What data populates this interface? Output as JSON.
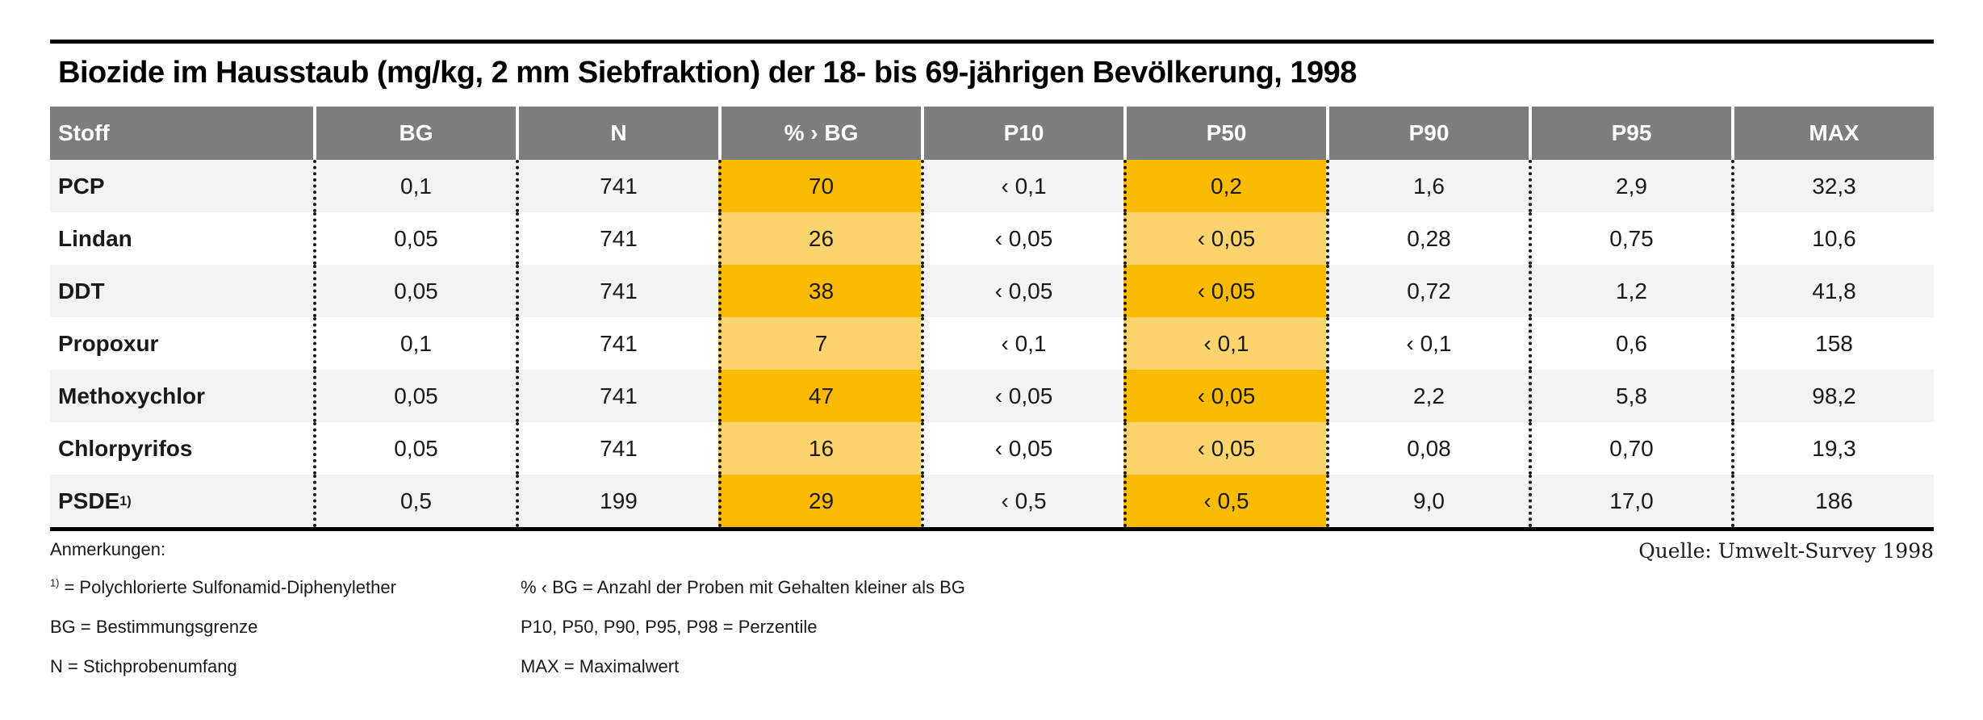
{
  "page": {
    "title": "Biozide im Hausstaub (mg/kg, 2 mm Siebfraktion) der 18- bis 69-jährigen Bevölkerung, 1998",
    "source": "Quelle: Umwelt-Survey 1998"
  },
  "colors": {
    "header_gray": "#7d7d7d",
    "row_alternate": "#f3f3f3",
    "highlight_dark_orange": "#fabb00",
    "highlight_light_orange": "#fcd46e",
    "rule_black": "#000000",
    "text": "#1a1a1a"
  },
  "table": {
    "headers": {
      "stoff": "Stoff",
      "bg": "BG",
      "n": "N",
      "pct": "% › BG",
      "p10": "P10",
      "p50": "P50",
      "p90": "P90",
      "p95": "P95",
      "max": "MAX"
    },
    "highlighted_columns": [
      "% › BG",
      "P50"
    ],
    "rows": [
      {
        "label": "PCP",
        "marker": "",
        "bg": "0,1",
        "n": "741",
        "pct": "70",
        "p10": "‹ 0,1",
        "p50": "0,2",
        "p90": "1,6",
        "p95": "2,9",
        "max": "32,3"
      },
      {
        "label": "Lindan",
        "marker": "",
        "bg": "0,05",
        "n": "741",
        "pct": "26",
        "p10": "‹ 0,05",
        "p50": "‹ 0,05",
        "p90": "0,28",
        "p95": "0,75",
        "max": "10,6"
      },
      {
        "label": "DDT",
        "marker": "",
        "bg": "0,05",
        "n": "741",
        "pct": "38",
        "p10": "‹ 0,05",
        "p50": "‹ 0,05",
        "p90": "0,72",
        "p95": "1,2",
        "max": "41,8"
      },
      {
        "label": "Propoxur",
        "marker": "",
        "bg": "0,1",
        "n": "741",
        "pct": "7",
        "p10": "‹ 0,1",
        "p50": "‹ 0,1",
        "p90": "‹ 0,1",
        "p95": "0,6",
        "max": "158"
      },
      {
        "label": "Methoxychlor",
        "marker": "",
        "bg": "0,05",
        "n": "741",
        "pct": "47",
        "p10": "‹ 0,05",
        "p50": "‹ 0,05",
        "p90": "2,2",
        "p95": "5,8",
        "max": "98,2"
      },
      {
        "label": "Chlorpyrifos",
        "marker": "",
        "bg": "0,05",
        "n": "741",
        "pct": "16",
        "p10": "‹ 0,05",
        "p50": "‹ 0,05",
        "p90": "0,08",
        "p95": "0,70",
        "max": "19,3"
      },
      {
        "label": "PSDE",
        "marker": "1)",
        "bg": "0,5",
        "n": "199",
        "pct": "29",
        "p10": "‹ 0,5",
        "p50": "‹ 0,5",
        "p90": "9,0",
        "p95": "17,0",
        "max": "186"
      }
    ]
  },
  "notes": {
    "heading": "Anmerkungen:",
    "left": [
      {
        "sup": "1)",
        "text": " = Polychlorierte Sulfonamid-Diphenylether"
      },
      {
        "sup": "",
        "text": "BG = Bestimmungsgrenze"
      },
      {
        "sup": "",
        "text": "N = Stichprobenumfang"
      }
    ],
    "right": [
      "% ‹ BG = Anzahl der Proben mit Gehalten kleiner als BG",
      "P10, P50, P90, P95, P98 = Perzentile",
      "MAX = Maximalwert"
    ]
  }
}
